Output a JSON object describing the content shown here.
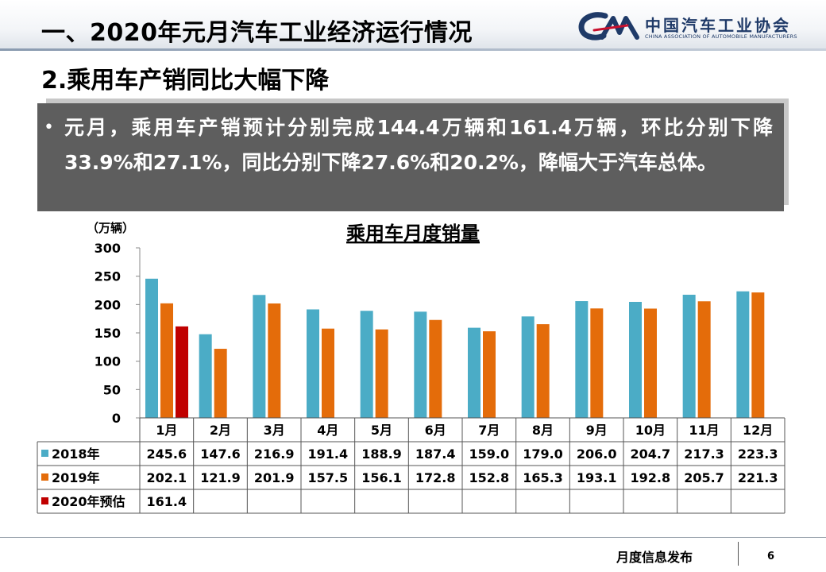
{
  "header": {
    "title": "一、2020年元月汽车工业经济运行情况",
    "logo_cn": "中国汽车工业协会",
    "logo_en": "CHINA ASSOCIATION OF AUTOMOBILE MANUFACTURERS",
    "logo_mark": "CAAM"
  },
  "section": {
    "subtitle": "2.乘用车产销同比大幅下降"
  },
  "callout": {
    "bullet": "•",
    "text": "元月，乘用车产销预计分别完成144.4万辆和161.4万辆，环比分别下降33.9%和27.1%，同比分别下降27.6%和20.2%，降幅大于汽车总体。"
  },
  "chart_data": {
    "type": "bar",
    "title": "乘用车月度销量",
    "ylabel": "（万辆）",
    "ylim": [
      0,
      300
    ],
    "yticks": [
      0,
      50,
      100,
      150,
      200,
      250,
      300
    ],
    "grid": false,
    "legend": "data-table",
    "categories": [
      "1月",
      "2月",
      "3月",
      "4月",
      "5月",
      "6月",
      "7月",
      "8月",
      "9月",
      "10月",
      "11月",
      "12月"
    ],
    "series": [
      {
        "name": "2018年",
        "color": "#4bacc6",
        "values": [
          245.6,
          147.6,
          216.9,
          191.4,
          188.9,
          187.4,
          159.0,
          179.0,
          206.0,
          204.7,
          217.3,
          223.3
        ]
      },
      {
        "name": "2019年",
        "color": "#e46c0a",
        "values": [
          202.1,
          121.9,
          201.9,
          157.5,
          156.1,
          172.8,
          152.8,
          165.3,
          193.1,
          192.8,
          205.7,
          221.3
        ]
      },
      {
        "name": "2020年预估",
        "color": "#c00000",
        "values": [
          161.4,
          null,
          null,
          null,
          null,
          null,
          null,
          null,
          null,
          null,
          null,
          null
        ]
      }
    ]
  },
  "footer": {
    "label": "月度信息发布",
    "page": "6"
  }
}
